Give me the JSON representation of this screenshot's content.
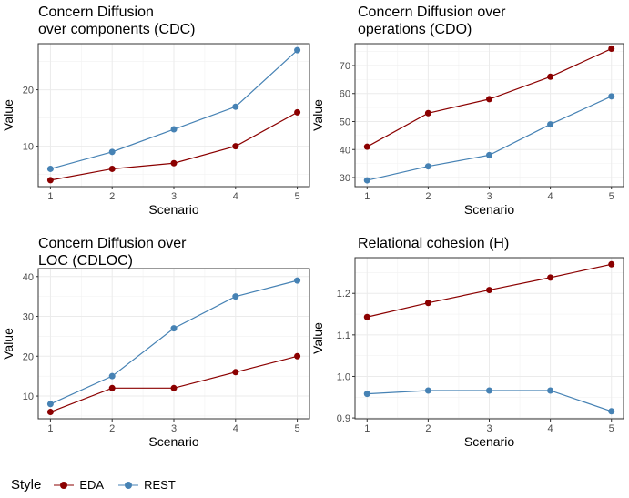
{
  "legend": {
    "title": "Style",
    "items": [
      {
        "name": "EDA",
        "color": "#8B0000"
      },
      {
        "name": "REST",
        "color": "#4682B4"
      }
    ]
  },
  "chart_data": [
    {
      "type": "line",
      "title": "Concern Diffusion\nover components (CDC)",
      "xlabel": "Scenario",
      "ylabel": "Value",
      "x": [
        1,
        2,
        3,
        4,
        5
      ],
      "xticks": [
        "1",
        "2",
        "3",
        "4",
        "5"
      ],
      "yticks": [
        "10",
        "20"
      ],
      "ytickvals": [
        10,
        20
      ],
      "ylim": [
        2.85,
        28.15
      ],
      "grid": true,
      "series": [
        {
          "name": "EDA",
          "values": [
            4,
            6,
            7,
            10,
            16
          ]
        },
        {
          "name": "REST",
          "values": [
            6,
            9,
            13,
            17,
            27
          ]
        }
      ]
    },
    {
      "type": "line",
      "title": "Concern Diffusion over\noperations (CDO)",
      "xlabel": "Scenario",
      "ylabel": "Value",
      "x": [
        1,
        2,
        3,
        4,
        5
      ],
      "xticks": [
        "1",
        "2",
        "3",
        "4",
        "5"
      ],
      "yticks": [
        "30",
        "40",
        "50",
        "60",
        "70"
      ],
      "ytickvals": [
        30,
        40,
        50,
        60,
        70
      ],
      "ylim": [
        26.75,
        77.8
      ],
      "grid": true,
      "series": [
        {
          "name": "EDA",
          "values": [
            41,
            53,
            58,
            66,
            76
          ]
        },
        {
          "name": "REST",
          "values": [
            29,
            34,
            38,
            49,
            59
          ]
        }
      ]
    },
    {
      "type": "line",
      "title": "Concern Diffusion over\nLOC (CDLOC)",
      "xlabel": "Scenario",
      "ylabel": "Value",
      "x": [
        1,
        2,
        3,
        4,
        5
      ],
      "xticks": [
        "1",
        "2",
        "3",
        "4",
        "5"
      ],
      "yticks": [
        "10",
        "20",
        "30",
        "40"
      ],
      "ytickvals": [
        10,
        20,
        30,
        40
      ],
      "ylim": [
        4.3,
        42
      ],
      "grid": true,
      "series": [
        {
          "name": "EDA",
          "values": [
            6,
            12,
            12,
            16,
            20
          ]
        },
        {
          "name": "REST",
          "values": [
            8,
            15,
            27,
            35,
            39
          ]
        }
      ]
    },
    {
      "type": "line",
      "title": "Relational cohesion (H)",
      "xlabel": "Scenario",
      "ylabel": "Value",
      "x": [
        1,
        2,
        3,
        4,
        5
      ],
      "xticks": [
        "1",
        "2",
        "3",
        "4",
        "5"
      ],
      "yticks": [
        "0.9",
        "1.0",
        "1.1",
        "1.2"
      ],
      "ytickvals": [
        0.9,
        1.0,
        1.1,
        1.2
      ],
      "ylim": [
        0.898,
        1.286
      ],
      "grid": true,
      "series": [
        {
          "name": "EDA",
          "values": [
            1.143,
            1.177,
            1.208,
            1.238,
            1.27
          ]
        },
        {
          "name": "REST",
          "values": [
            0.958,
            0.966,
            0.966,
            0.966,
            0.916
          ]
        }
      ]
    }
  ]
}
